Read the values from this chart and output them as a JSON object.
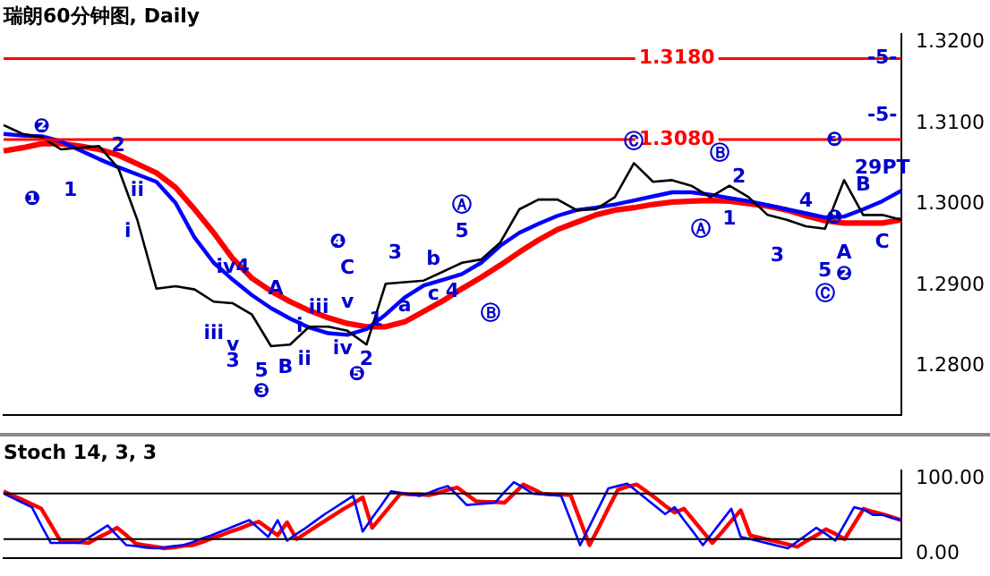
{
  "chart_data": [
    {
      "type": "line",
      "title": "瑞朗60分钟图, Daily",
      "categories": [
        null,
        null,
        null,
        null,
        null,
        null,
        null,
        null,
        null,
        null,
        null,
        null,
        null,
        null,
        null,
        null,
        null,
        null,
        null,
        null,
        null,
        null,
        null,
        null,
        null,
        null,
        null,
        null,
        null,
        null,
        null,
        null,
        null,
        null,
        null,
        null,
        null,
        null,
        null,
        null,
        null,
        null,
        null,
        null,
        null,
        null,
        null,
        null
      ],
      "ylim": [
        1.274,
        1.321
      ],
      "yticks": [
        {
          "value": 1.28,
          "label": "1.2800"
        },
        {
          "value": 1.29,
          "label": "1.2900"
        },
        {
          "value": 1.3,
          "label": "1.3000"
        },
        {
          "value": 1.31,
          "label": "1.3100"
        },
        {
          "value": 1.32,
          "label": "1.3200"
        }
      ],
      "tick_labels": "y",
      "grid": false,
      "legend": false,
      "marker": "none",
      "series": [
        {
          "color": "#000000",
          "values": [
            1.3098,
            1.3087,
            1.3083,
            1.3068,
            1.307,
            1.3072,
            1.3045,
            1.2981,
            1.2896,
            1.2899,
            1.2895,
            1.288,
            1.2878,
            1.2864,
            1.2825,
            1.2827,
            1.2849,
            1.2849,
            1.2844,
            1.2827,
            1.2902,
            1.2904,
            1.2906,
            1.2917,
            1.2928,
            1.2932,
            1.2953,
            1.2994,
            1.3006,
            1.3006,
            1.2993,
            1.2994,
            1.3009,
            1.3051,
            1.3028,
            1.303,
            1.3023,
            1.3009,
            1.3023,
            1.3009,
            1.2987,
            1.2981,
            1.2973,
            1.297,
            1.303,
            1.2987,
            1.2987,
            1.2981
          ]
        },
        {
          "color": "#0000ff",
          "values": [
            1.3087,
            1.3085,
            1.3084,
            1.3078,
            1.3067,
            1.3056,
            1.3046,
            1.3037,
            1.3028,
            1.3002,
            1.2959,
            1.2928,
            1.2907,
            1.2888,
            1.2872,
            1.2859,
            1.2848,
            1.2841,
            1.2839,
            1.2846,
            1.2864,
            1.2885,
            1.29,
            1.2907,
            1.2914,
            1.2928,
            1.2949,
            1.2965,
            1.2976,
            1.2986,
            1.2993,
            1.2996,
            1.3,
            1.3005,
            1.301,
            1.3015,
            1.3015,
            1.3012,
            1.3008,
            1.3004,
            1.2999,
            1.2994,
            1.2989,
            1.2984,
            1.2985,
            1.2994,
            1.3004,
            1.3017
          ]
        },
        {
          "color": "#ff0000",
          "values": [
            1.3066,
            1.307,
            1.3075,
            1.3075,
            1.3072,
            1.3068,
            1.3061,
            1.305,
            1.3039,
            1.3021,
            1.2994,
            1.2965,
            1.2933,
            1.2909,
            1.2893,
            1.288,
            1.2869,
            1.286,
            1.2853,
            1.2849,
            1.2849,
            1.2855,
            1.2868,
            1.2881,
            1.2896,
            1.291,
            1.2925,
            1.2941,
            1.2956,
            1.2969,
            1.2978,
            1.2987,
            1.2993,
            1.2996,
            1.3,
            1.3003,
            1.3004,
            1.3005,
            1.3004,
            1.3001,
            1.2998,
            1.2993,
            1.2986,
            1.298,
            1.2977,
            1.2977,
            1.2977,
            1.2981
          ]
        }
      ],
      "ref_lines": [
        {
          "axis": "y",
          "value": 1.318,
          "label": "1.3180",
          "color": "#ff0000"
        },
        {
          "axis": "y",
          "value": 1.308,
          "label": "1.3080",
          "color": "#ff0000"
        }
      ],
      "annotations": [
        "❶",
        "❷",
        "1",
        "2",
        "ii",
        "i",
        "iv4",
        "A",
        "iii",
        "v",
        "3",
        "5",
        "B",
        "ii",
        "❸",
        "❹",
        "C",
        "iii",
        "v",
        "i",
        "1",
        "iv",
        "2",
        "❺",
        "3",
        "5",
        "b",
        "a",
        "c",
        "4",
        "Ⓑ",
        "Ⓐ",
        "Ⓒ",
        "Ⓑ",
        "Ⓐ",
        "2",
        "1",
        "3",
        "4",
        "❶",
        "A",
        "5",
        "❷",
        "Ⓒ",
        "B",
        "C",
        "❸",
        "-5-",
        "-5-",
        "29PT"
      ]
    },
    {
      "type": "line",
      "title": "Stoch 14, 3, 3",
      "categories": [
        null,
        null,
        null,
        null,
        null,
        null,
        null,
        null,
        null,
        null,
        null,
        null,
        null,
        null,
        null,
        null,
        null,
        null,
        null,
        null,
        null,
        null,
        null,
        null,
        null,
        null,
        null,
        null,
        null,
        null,
        null,
        null,
        null,
        null,
        null,
        null,
        null,
        null,
        null,
        null,
        null,
        null,
        null,
        null,
        null,
        null,
        null,
        null,
        null,
        null,
        null,
        null,
        null,
        null,
        null,
        null,
        null,
        null,
        null,
        null,
        null,
        null,
        null,
        null,
        null,
        null,
        null,
        null,
        null,
        null,
        null,
        null,
        null,
        null,
        null,
        null,
        null,
        null,
        null,
        null,
        null,
        null,
        null,
        null,
        null,
        null,
        null,
        null,
        null,
        null,
        null,
        null,
        null,
        null,
        null,
        null
      ],
      "ylim": [
        -5,
        110
      ],
      "yticks": [
        {
          "value": 0,
          "label": "0.00"
        },
        {
          "value": 100,
          "label": "100.00"
        }
      ],
      "tick_labels": "y",
      "grid": false,
      "legend": false,
      "marker": "none",
      "series": [
        {
          "color": "#0000ff",
          "values": [
            80,
            74,
            68,
            62,
            38,
            15,
            15,
            15,
            15,
            22,
            30,
            38,
            25,
            12,
            11,
            9,
            8,
            9,
            11,
            12,
            16,
            21,
            25,
            30,
            35,
            40,
            45,
            34,
            23,
            45,
            18,
            27,
            35,
            44,
            53,
            61,
            69,
            77,
            30,
            48,
            65,
            83,
            81,
            79,
            77,
            81,
            86,
            90,
            78,
            65,
            66,
            67,
            68,
            82,
            95,
            88,
            80,
            79,
            78,
            77,
            45,
            12,
            37,
            62,
            87,
            90,
            93,
            83,
            73,
            63,
            53,
            62,
            45,
            29,
            12,
            28,
            44,
            60,
            23,
            20,
            17,
            14,
            11,
            8,
            17,
            26,
            35,
            27,
            18,
            40,
            62,
            59,
            52,
            52,
            48,
            45
          ]
        },
        {
          "color": "#ff0000",
          "values": [
            83,
            77,
            72,
            66,
            60,
            39,
            18,
            17,
            16,
            15,
            22,
            28,
            35,
            25,
            14,
            12,
            10,
            8,
            9,
            11,
            12,
            16,
            21,
            25,
            30,
            34,
            39,
            43,
            34,
            25,
            42,
            20,
            28,
            36,
            44,
            52,
            60,
            67,
            75,
            35,
            50,
            65,
            80,
            79,
            79,
            78,
            81,
            85,
            88,
            79,
            70,
            69,
            69,
            68,
            80,
            92,
            86,
            80,
            79,
            79,
            78,
            45,
            12,
            36,
            61,
            85,
            89,
            92,
            83,
            74,
            64,
            55,
            60,
            45,
            30,
            15,
            29,
            44,
            58,
            25,
            22,
            19,
            16,
            13,
            10,
            18,
            25,
            33,
            27,
            20,
            40,
            60,
            56,
            53,
            49,
            45
          ]
        }
      ],
      "ref_lines": [
        {
          "axis": "y",
          "value": 80,
          "color": "#000000"
        },
        {
          "axis": "y",
          "value": 20,
          "color": "#000000"
        }
      ]
    }
  ]
}
